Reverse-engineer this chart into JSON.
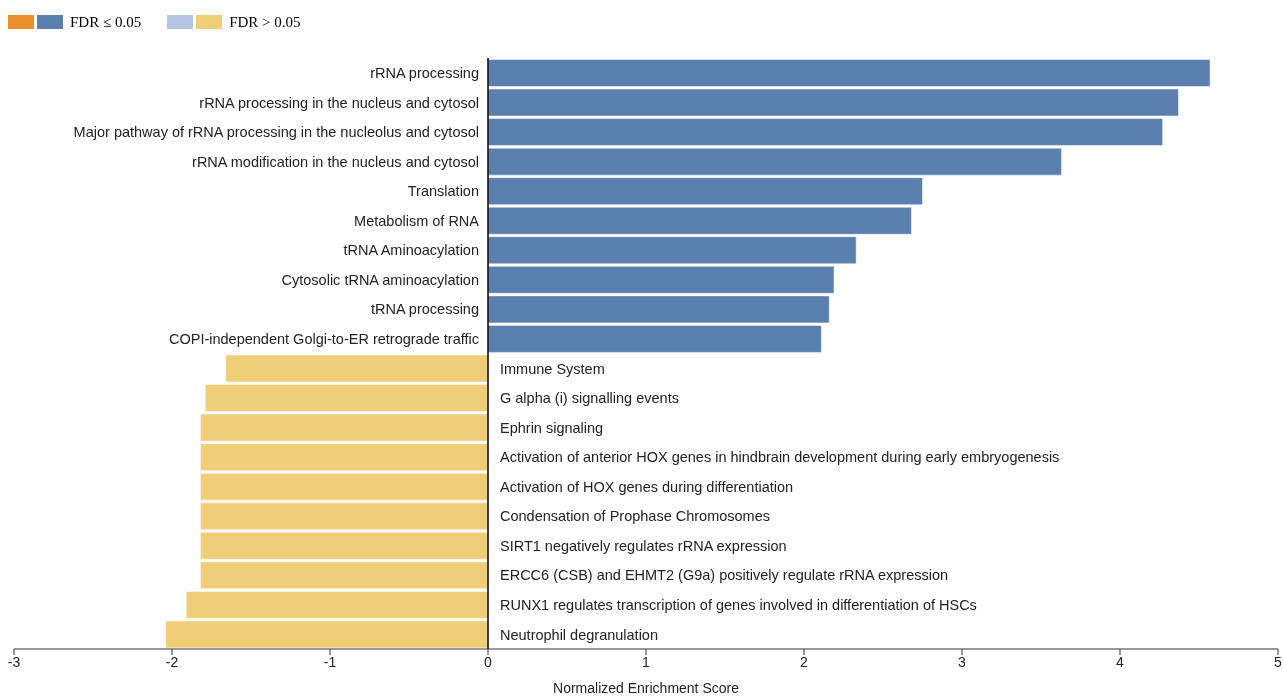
{
  "chart_data": {
    "type": "bar",
    "orientation": "horizontal",
    "xlabel": "Normalized Enrichment Score",
    "categories": [
      "rRNA processing",
      "rRNA processing in the nucleus and cytosol",
      "Major pathway of rRNA processing in the nucleolus and cytosol",
      "rRNA modification in the nucleus and cytosol",
      "Translation",
      "Metabolism of RNA",
      "tRNA Aminoacylation",
      "Cytosolic tRNA aminoacylation",
      "tRNA processing",
      "COPI-independent Golgi-to-ER retrograde traffic",
      "Immune System",
      "G alpha (i) signalling events",
      "Ephrin signaling",
      "Activation of anterior HOX genes in hindbrain development during early embryogenesis",
      "Activation of HOX genes during differentiation",
      "Condensation of Prophase Chromosomes",
      "SIRT1 negatively regulates rRNA expression",
      "ERCC6 (CSB) and EHMT2 (G9a) positively regulate rRNA expression",
      "RUNX1 regulates transcription of genes involved in differentiation of HSCs",
      "Neutrophil degranulation"
    ],
    "series": [
      {
        "name": "FDR ≤ 0.05",
        "color": "#5b7fae",
        "values": [
          4.57,
          4.37,
          4.27,
          3.63,
          2.75,
          2.68,
          2.33,
          2.19,
          2.16,
          2.11,
          null,
          null,
          null,
          null,
          null,
          null,
          null,
          null,
          null,
          null
        ]
      },
      {
        "name": "FDR > 0.05",
        "color": "#f0cd78",
        "values": [
          null,
          null,
          null,
          null,
          null,
          null,
          null,
          null,
          null,
          null,
          -1.66,
          -1.79,
          -1.82,
          -1.82,
          -1.82,
          -1.82,
          -1.82,
          -1.82,
          -1.91,
          -2.04
        ]
      }
    ],
    "xlim": [
      -3,
      5
    ],
    "xticks": [
      -3,
      -2,
      -1,
      0,
      1,
      2,
      3,
      4,
      5
    ],
    "legend": "top left",
    "grid": false
  }
}
